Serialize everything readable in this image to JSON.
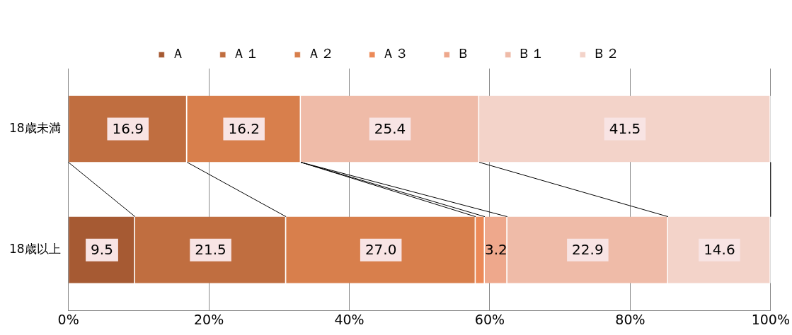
{
  "chart_data": {
    "type": "bar",
    "orientation": "horizontal",
    "stacked": true,
    "categories": [
      "18歳未満",
      "18歳以上"
    ],
    "series": [
      {
        "name": "Ａ",
        "color": "#a65a33",
        "values": [
          0,
          9.5
        ],
        "value_labels": [
          null,
          "9.5"
        ]
      },
      {
        "name": "Ａ１",
        "color": "#c06e40",
        "values": [
          16.9,
          21.5
        ],
        "value_labels": [
          "16.9",
          "21.5"
        ]
      },
      {
        "name": "Ａ２",
        "color": "#d87f4c",
        "values": [
          16.2,
          27.0
        ],
        "value_labels": [
          "16.2",
          "27.0"
        ]
      },
      {
        "name": "Ａ３",
        "color": "#ec8a58",
        "values": [
          0,
          1.3
        ],
        "value_labels": [
          null,
          null
        ]
      },
      {
        "name": "Ｂ",
        "color": "#eea88c",
        "values": [
          0,
          3.2
        ],
        "value_labels": [
          null,
          "3.2"
        ]
      },
      {
        "name": "Ｂ１",
        "color": "#efbba8",
        "values": [
          25.4,
          22.9
        ],
        "value_labels": [
          "25.4",
          "22.9"
        ]
      },
      {
        "name": "Ｂ２",
        "color": "#f3d3c9",
        "values": [
          41.5,
          14.6
        ],
        "value_labels": [
          "41.5",
          "14.6"
        ]
      }
    ],
    "xlim": [
      0,
      100
    ],
    "xticks": [
      {
        "value": 0,
        "label": "0%"
      },
      {
        "value": 20,
        "label": "20%"
      },
      {
        "value": 40,
        "label": "40%"
      },
      {
        "value": 60,
        "label": "60%"
      },
      {
        "value": 80,
        "label": "80%"
      },
      {
        "value": 100,
        "label": "100%"
      }
    ],
    "grid": "x",
    "legend": "top"
  }
}
